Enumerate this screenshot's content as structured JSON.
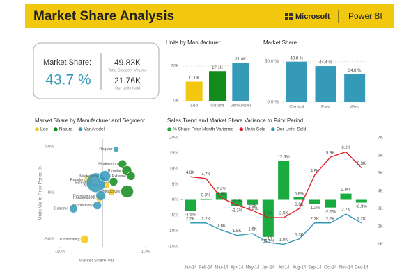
{
  "header": {
    "title": "Market Share Analysis",
    "brand": "Microsoft",
    "product": "Power BI"
  },
  "kpi": {
    "label": "Market Share:",
    "value": "43.7 %",
    "total": "49.83K",
    "total_label": "Total Category Volume",
    "units": "21.76K",
    "units_label": "Our Units Sold"
  },
  "chart_data": [
    {
      "type": "bar",
      "title": "Units by Manufacturer",
      "categories": [
        "Leo",
        "Natura",
        "VanArsdel"
      ],
      "values": [
        11000,
        17100,
        21800
      ],
      "value_labels": [
        "11.0K",
        "17.1K",
        "21.8K"
      ],
      "colors": [
        "#f2c80f",
        "#118b1b",
        "#3599b8"
      ],
      "ylim": [
        0,
        24000
      ],
      "yticks": [
        {
          "value": 0,
          "label": "0K"
        },
        {
          "value": 20000,
          "label": "20K"
        }
      ],
      "grid": true
    },
    {
      "type": "bar",
      "title": "Market Share",
      "categories": [
        "Central",
        "East",
        "West"
      ],
      "values": [
        49.8,
        44.4,
        34.8
      ],
      "value_labels": [
        "49.8 %",
        "44.4 %",
        "34.8 %"
      ],
      "color": "#3599b8",
      "ylim": [
        0,
        53
      ],
      "yticks": [
        {
          "value": 0,
          "label": "0.0 %"
        },
        {
          "value": 50,
          "label": "50.0 %"
        }
      ],
      "grid": true
    },
    {
      "type": "scatter",
      "title": "Market Share by Manufacturer and Segment",
      "x_label": "Market Share Var",
      "y_label": "Units Var to Prior Period %",
      "xlim": [
        -14,
        11
      ],
      "xticks": [
        {
          "value": -10,
          "label": "-10%"
        },
        {
          "value": 10,
          "label": "10%"
        }
      ],
      "ylim": [
        -58,
        58
      ],
      "yticks": [
        {
          "value": 50,
          "label": "50%"
        },
        {
          "value": 0,
          "label": "0%"
        },
        {
          "value": -50,
          "label": "-50%"
        }
      ],
      "series": [
        {
          "name": "Leo",
          "color": "#f2c80f",
          "x": [
            -3.4,
            0.7,
            2,
            -0.8,
            -4.3
          ],
          "y": [
            14,
            8,
            1,
            -6,
            -50
          ],
          "size": [
            6,
            5,
            5,
            5,
            6
          ],
          "labels": [
            "Regular",
            "All Season",
            "Youth",
            "Convenience",
            "Productivity"
          ]
        },
        {
          "name": "Natura",
          "color": "#118b1b",
          "x": [
            4.6,
            5.6,
            6.6,
            5.7,
            2.5
          ],
          "y": [
            31,
            24,
            18,
            1.5,
            12
          ],
          "size": [
            6,
            7,
            6,
            9,
            6
          ],
          "labels": [
            "Moderation",
            "Regular",
            "Extreme",
            "Productivity",
            "Select"
          ]
        },
        {
          "name": "VanArsdel",
          "color": "#3599b8",
          "x": [
            3.1,
            -1.6,
            0.5,
            -6.9,
            -1.3,
            -0.5
          ],
          "y": [
            47,
            11,
            18,
            -17,
            -13.5,
            -3
          ],
          "size": [
            4,
            14,
            8,
            6,
            6,
            7
          ],
          "labels": [
            "Regular",
            "Select",
            "Moderation",
            "Extreme",
            "Productivity",
            "Convenience"
          ]
        }
      ]
    },
    {
      "type": "combo",
      "title": "Sales Trend and Market Share Variance to Prior Period",
      "categories": [
        "Jan-14",
        "Feb-14",
        "Mar-14",
        "Apr-14",
        "May-14",
        "Jun-14",
        "Jul-14",
        "Aug-14",
        "Sep-14",
        "Oct-14",
        "Nov-14",
        "Dec-14"
      ],
      "ylim": [
        -20,
        20
      ],
      "yticks": [
        {
          "value": 20,
          "label": "20%"
        },
        {
          "value": 15,
          "label": "15%"
        },
        {
          "value": 10,
          "label": "10%"
        },
        {
          "value": 5,
          "label": "5%"
        },
        {
          "value": 0,
          "label": "0%"
        },
        {
          "value": -5,
          "label": "-5%"
        },
        {
          "value": -10,
          "label": "-10%"
        },
        {
          "value": -15,
          "label": "-15%"
        }
      ],
      "y2lim": [
        0,
        7
      ],
      "y2ticks": [
        {
          "value": 7,
          "label": "7K"
        },
        {
          "value": 6,
          "label": "6K"
        },
        {
          "value": 5,
          "label": "5K"
        },
        {
          "value": 4,
          "label": "4K"
        },
        {
          "value": 3,
          "label": "3K"
        },
        {
          "value": 2,
          "label": "2K"
        },
        {
          "value": 1,
          "label": "1K"
        }
      ],
      "series": [
        {
          "name": "% Share Prior Month Variance",
          "type": "bar",
          "color": "#1aab40",
          "values": [
            -3.5,
            0.3,
            2.4,
            -2.1,
            -1.6,
            -11.9,
            12.6,
            0.8,
            -1.3,
            -2.5,
            2.0,
            -0.9
          ],
          "value_labels": [
            "-3.5%",
            "0.3%",
            "2.4%",
            "-2.1%",
            "-1.6%",
            "-11.9%",
            "12.6%",
            "0.8%",
            "-1.3%",
            "-2.5%",
            "2.0%",
            "-0.9%"
          ]
        },
        {
          "name": "Units Sold",
          "type": "line",
          "axis": "y2",
          "color": "#d9262e",
          "values": [
            4.8,
            4.7,
            3.6,
            3.2,
            2.9,
            2.5,
            2.5,
            3.0,
            4.9,
            5.9,
            6.2,
            5.3
          ],
          "value_labels": [
            "4.8K",
            "4.7K",
            "3.6K",
            "3.2K",
            "2.9K",
            "2.5K",
            "2.5K",
            "3.0K",
            "4.9K",
            "5.9K",
            "6.2K",
            "5.3K"
          ]
        },
        {
          "name": "Our Units Sold",
          "type": "line",
          "axis": "y2",
          "color": "#3599b8",
          "values": [
            2.2,
            2.2,
            1.8,
            1.5,
            1.6,
            1.1,
            1.0,
            1.3,
            2.2,
            2.2,
            2.7,
            2.2
          ],
          "value_labels": [
            "2.2K",
            "2.2K",
            "1.8K",
            "1.5K",
            "1.6K",
            "1.1K",
            "1.0K",
            "1.3K",
            "2.2K",
            "2.2K",
            "2.7K",
            "2.2K"
          ]
        }
      ]
    }
  ]
}
